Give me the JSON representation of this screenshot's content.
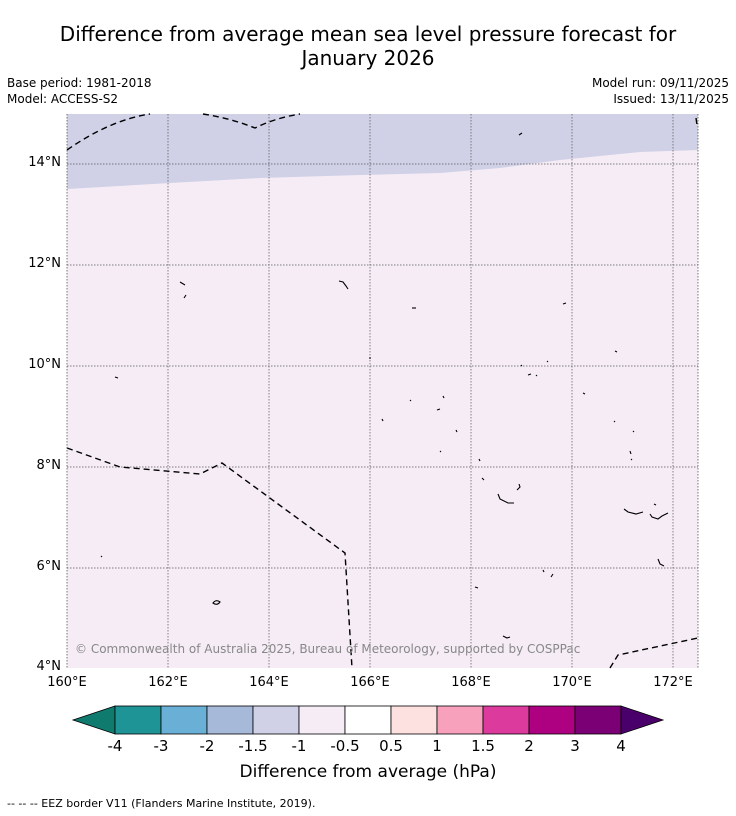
{
  "title_line1": "Difference from average mean sea level pressure forecast for",
  "title_line2": "January 2026",
  "base_period": "Base period: 1981-2018",
  "model": "Model: ACCESS-S2",
  "model_run": "Model run: 09/11/2025",
  "issued": "Issued: 13/11/2025",
  "copyright": "© Commonwealth of Australia 2025, Bureau of Meteorology, supported by COSPPac",
  "lat_labels": [
    "14°N",
    "12°N",
    "10°N",
    "8°N",
    "6°N",
    "4°N"
  ],
  "lon_labels": [
    "160°E",
    "162°E",
    "164°E",
    "166°E",
    "168°E",
    "170°E",
    "172°E"
  ],
  "colorbar": {
    "title": "Difference from average (hPa)",
    "ticks": [
      "-4",
      "-3",
      "-2",
      "-1.5",
      "-1",
      "-0.5",
      "0.5",
      "1",
      "1.5",
      "2",
      "3",
      "4"
    ],
    "colors": [
      "#0f7a6e",
      "#1e9496",
      "#6aafd6",
      "#a7b9d8",
      "#d0d0e6",
      "#f5ecf5",
      "#ffffff",
      "#fde0e0",
      "#f7a1bd",
      "#dd3a9e",
      "#ad0181",
      "#7b0076",
      "#4a006a"
    ]
  },
  "footer": "--  --  -- EEZ border V11 (Flanders Marine Institute, 2019).",
  "map_colors": {
    "north_band": "#d0d0e6",
    "main_field": "#f5ecf5"
  }
}
